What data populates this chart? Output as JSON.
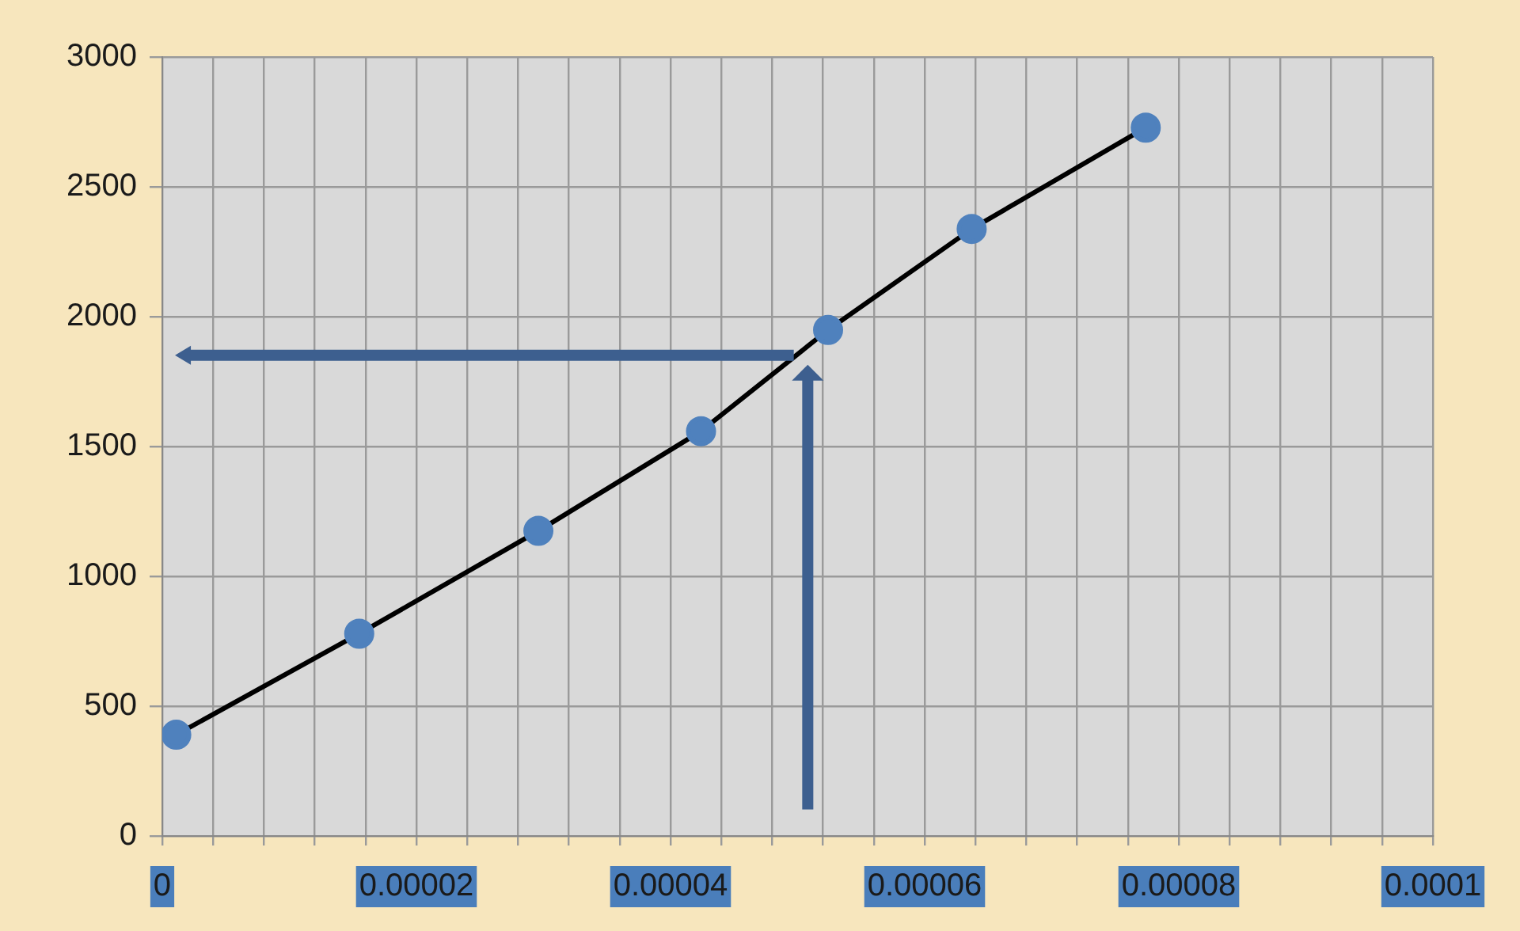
{
  "chart_data": {
    "type": "line",
    "x": [
      1.1e-06,
      1.55e-05,
      2.96e-05,
      4.24e-05,
      5.24e-05,
      6.37e-05,
      7.74e-05
    ],
    "series": [
      {
        "color": "#4f81bd",
        "values": [
          390,
          779,
          1175,
          1559,
          1949,
          2338,
          2728
        ]
      }
    ],
    "xlim": [
      0,
      0.0001
    ],
    "xticks": [
      0,
      {
        "value": 4e-06,
        "label": null
      },
      {
        "value": 8e-06,
        "label": null
      },
      {
        "value": 1.2e-05,
        "label": null
      },
      {
        "value": 1.6e-05,
        "label": null
      },
      {
        "value": 2e-05,
        "label": "0.00002"
      },
      {
        "value": 2.4e-05,
        "label": null
      },
      {
        "value": 2.8e-05,
        "label": null
      },
      {
        "value": 3.2e-05,
        "label": null
      },
      {
        "value": 3.6e-05,
        "label": null
      },
      {
        "value": 4e-05,
        "label": "0.00004"
      },
      {
        "value": 4.4e-05,
        "label": null
      },
      {
        "value": 4.8e-05,
        "label": null
      },
      {
        "value": 5.2e-05,
        "label": null
      },
      {
        "value": 5.6e-05,
        "label": null
      },
      {
        "value": 6e-05,
        "label": "0.00006"
      },
      {
        "value": 6.4e-05,
        "label": null
      },
      {
        "value": 6.8e-05,
        "label": null
      },
      {
        "value": 7.2e-05,
        "label": null
      },
      {
        "value": 7.6e-05,
        "label": null
      },
      {
        "value": 8e-05,
        "label": "0.00008"
      },
      {
        "value": 8.4e-05,
        "label": null
      },
      {
        "value": 8.8e-05,
        "label": null
      },
      {
        "value": 9.2e-05,
        "label": null
      },
      {
        "value": 9.6e-05,
        "label": null
      },
      0.0001
    ],
    "ylim": [
      0,
      3000
    ],
    "yticks": [
      0,
      500,
      1000,
      1500,
      2000,
      2500,
      3000
    ],
    "grid": true,
    "legend": false,
    "marker": "circle",
    "line_style": "solid"
  }
}
